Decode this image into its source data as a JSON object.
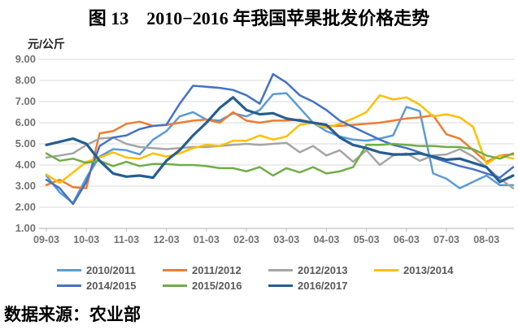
{
  "title": "图 13　2010−2016 年我国苹果批发价格走势",
  "y_axis_unit": "元/公斤",
  "source": "数据来源：农业部",
  "chart_data": {
    "type": "line",
    "title": "图 13　2010−2016 年我国苹果批发价格走势",
    "ylabel": "元/公斤",
    "ylim": [
      1,
      9
    ],
    "grid": "horizontal",
    "legend_position": "bottom",
    "samples_per_month": 3,
    "y_tick_labels": [
      "9.00",
      "8.00",
      "7.00",
      "6.00",
      "5.00",
      "4.00",
      "3.00",
      "2.00",
      "1.00"
    ],
    "x_tick_labels": [
      "09-03",
      "10-03",
      "11-03",
      "12-03",
      "01-03",
      "02-03",
      "03-03",
      "04-03",
      "05-03",
      "06-03",
      "07-03",
      "08-03"
    ],
    "series": [
      {
        "name": "2010/2011",
        "color": "#5B9BD5",
        "values": [
          3.5,
          2.7,
          2.2,
          3.4,
          4.4,
          4.75,
          4.7,
          4.5,
          5.2,
          5.6,
          6.3,
          6.5,
          6.15,
          6.1,
          6.45,
          6.3,
          6.6,
          7.35,
          7.4,
          6.7,
          6.0,
          5.6,
          5.35,
          5.2,
          5.15,
          5.25,
          5.4,
          6.75,
          6.55,
          3.6,
          3.35,
          2.9,
          3.2,
          3.5,
          3.05,
          3.05
        ]
      },
      {
        "name": "2011/2012",
        "color": "#ED7D31",
        "values": [
          3.05,
          3.3,
          2.95,
          2.9,
          5.5,
          5.6,
          5.95,
          6.05,
          5.85,
          5.9,
          6.0,
          6.1,
          6.15,
          6.0,
          6.5,
          6.1,
          6.0,
          6.1,
          6.1,
          6.15,
          6.0,
          5.85,
          5.85,
          5.9,
          5.95,
          6.0,
          6.1,
          6.2,
          6.25,
          6.35,
          5.45,
          5.25,
          4.7,
          4.15,
          4.45,
          4.5
        ]
      },
      {
        "name": "2012/2013",
        "color": "#A5A5A5",
        "values": [
          4.35,
          4.45,
          4.55,
          4.95,
          5.25,
          5.3,
          5.0,
          4.85,
          4.8,
          4.75,
          4.8,
          4.85,
          4.85,
          4.9,
          4.95,
          5.0,
          4.95,
          5.0,
          5.05,
          4.6,
          4.9,
          4.45,
          4.7,
          4.15,
          4.7,
          4.0,
          4.45,
          4.55,
          4.2,
          4.45,
          4.5,
          4.75,
          4.4,
          3.9,
          3.35,
          2.9
        ]
      },
      {
        "name": "2013/2014",
        "color": "#FFC000",
        "values": [
          3.55,
          3.15,
          3.65,
          4.15,
          4.35,
          4.6,
          4.35,
          4.3,
          4.55,
          4.4,
          4.55,
          4.8,
          4.95,
          4.9,
          5.15,
          5.15,
          5.4,
          5.2,
          5.35,
          5.9,
          6.0,
          5.75,
          5.95,
          6.2,
          6.5,
          7.3,
          7.1,
          7.2,
          6.85,
          6.3,
          6.4,
          6.25,
          5.8,
          4.05,
          4.45,
          4.3
        ]
      },
      {
        "name": "2014/2015",
        "color": "#4472C4",
        "values": [
          3.3,
          2.9,
          2.15,
          3.2,
          4.9,
          5.3,
          5.4,
          5.7,
          5.85,
          5.9,
          6.9,
          7.75,
          7.7,
          7.65,
          7.55,
          7.3,
          6.9,
          8.3,
          7.9,
          7.3,
          7.0,
          6.6,
          6.1,
          5.8,
          5.5,
          5.2,
          4.95,
          4.8,
          4.6,
          4.35,
          4.15,
          3.95,
          3.8,
          3.6,
          3.4,
          3.9
        ]
      },
      {
        "name": "2015/2016",
        "color": "#70AD47",
        "values": [
          4.55,
          4.2,
          4.3,
          4.1,
          4.2,
          3.95,
          4.15,
          3.95,
          4.05,
          4.05,
          4.0,
          4.0,
          3.95,
          3.85,
          3.85,
          3.7,
          3.9,
          3.5,
          3.85,
          3.65,
          3.9,
          3.6,
          3.7,
          3.9,
          4.95,
          4.95,
          5.0,
          4.95,
          4.9,
          4.9,
          4.85,
          4.85,
          4.75,
          4.45,
          4.3,
          4.55
        ]
      },
      {
        "name": "2016/2017",
        "color": "#255E91",
        "values": [
          4.95,
          5.1,
          5.25,
          5.0,
          4.2,
          3.6,
          3.45,
          3.5,
          3.4,
          4.2,
          4.7,
          5.4,
          6.0,
          6.7,
          7.2,
          6.6,
          6.4,
          6.45,
          6.2,
          6.1,
          6.0,
          5.9,
          5.3,
          4.95,
          4.8,
          4.6,
          4.5,
          4.5,
          4.55,
          4.4,
          4.25,
          4.3,
          4.1,
          3.9,
          3.2,
          3.5
        ]
      }
    ]
  }
}
